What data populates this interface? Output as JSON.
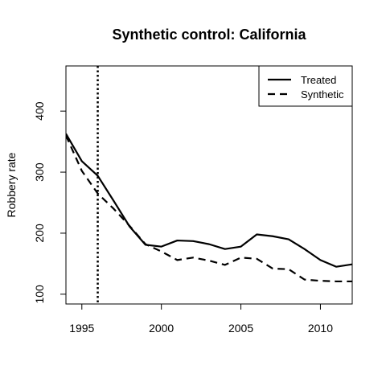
{
  "chart_data": {
    "type": "line",
    "title": "Synthetic control: California",
    "xlabel": "",
    "ylabel": "Robbery rate",
    "xlim": [
      1994,
      2012
    ],
    "ylim": [
      84,
      474
    ],
    "x_ticks": [
      1995,
      2000,
      2005,
      2010
    ],
    "y_ticks": [
      100,
      200,
      300,
      400
    ],
    "vline": {
      "x": 1996,
      "style": "dotted"
    },
    "legend": {
      "position": "top-right"
    },
    "x": [
      1994,
      1995,
      1996,
      1997,
      1998,
      1999,
      2000,
      2001,
      2002,
      2003,
      2004,
      2005,
      2006,
      2007,
      2008,
      2009,
      2010,
      2011,
      2012
    ],
    "series": [
      {
        "name": "Treated",
        "style": "solid",
        "values": [
          363,
          318,
          294,
          253,
          211,
          181,
          178,
          188,
          187,
          182,
          174,
          178,
          198,
          195,
          190,
          174,
          156,
          145,
          149
        ]
      },
      {
        "name": "Synthetic",
        "style": "dashed",
        "values": [
          360,
          302,
          265,
          240,
          212,
          182,
          170,
          156,
          160,
          155,
          148,
          160,
          158,
          142,
          141,
          124,
          122,
          121,
          121
        ]
      }
    ]
  }
}
